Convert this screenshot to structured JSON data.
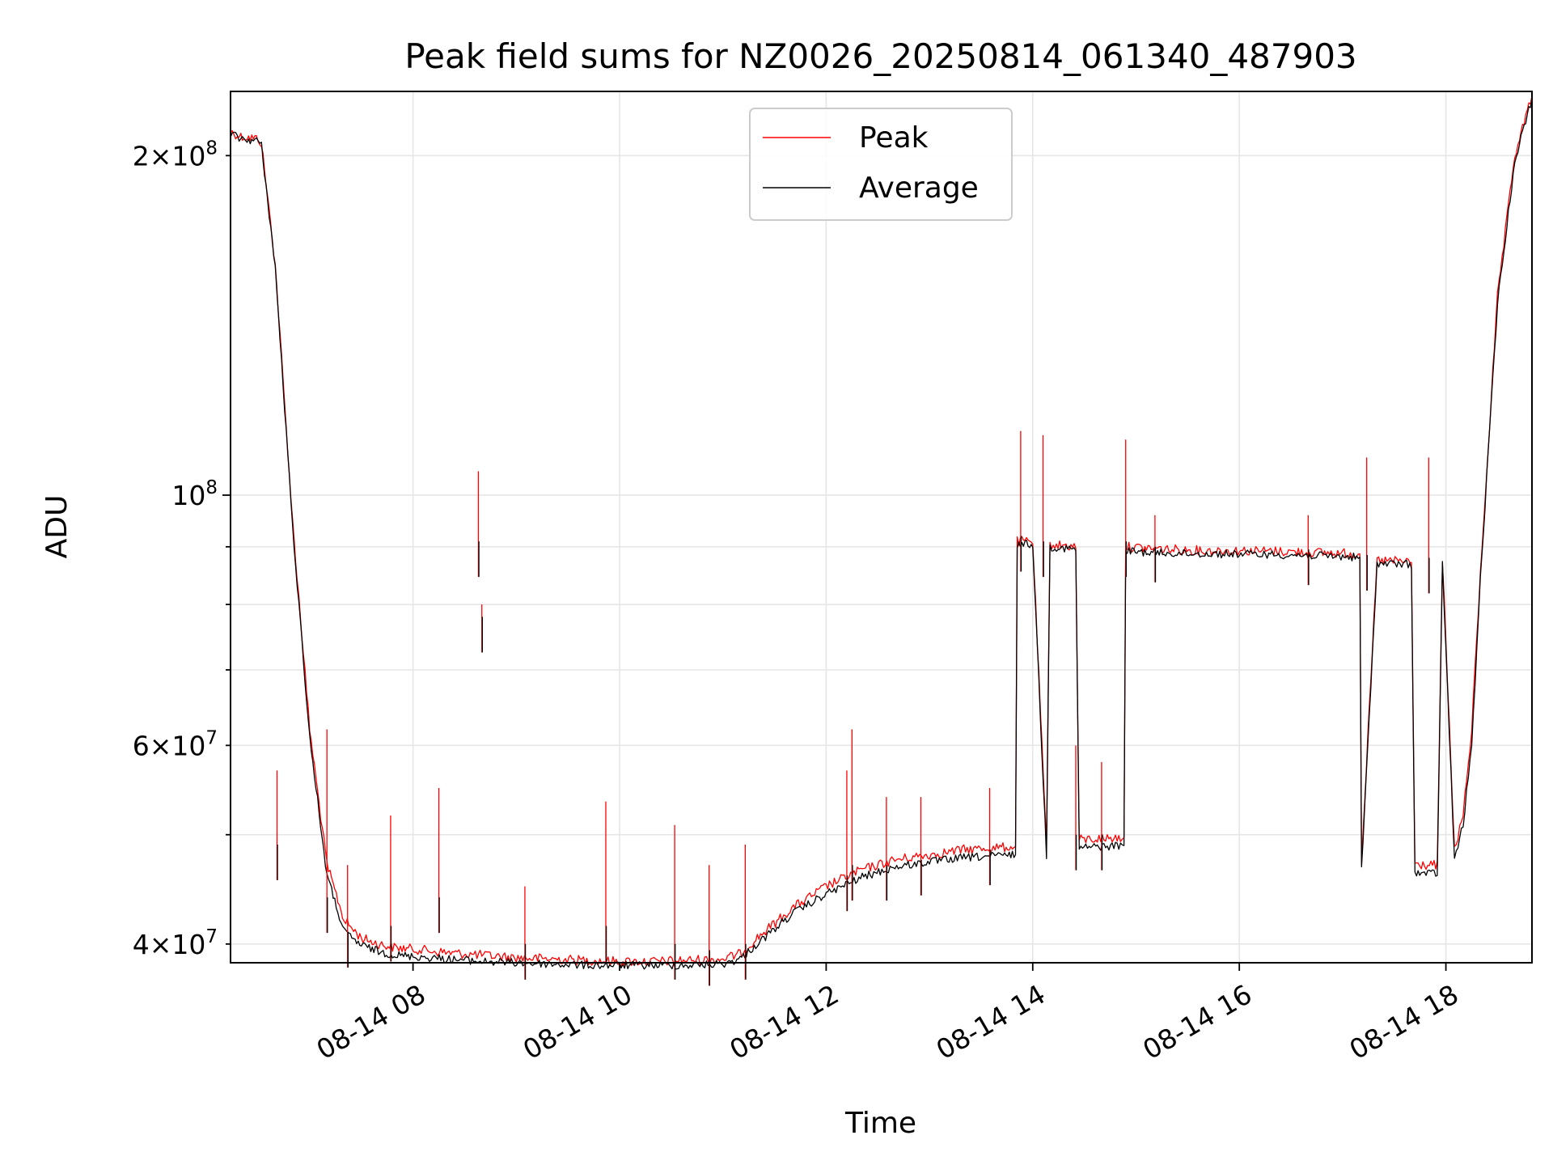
{
  "chart_data": {
    "type": "line",
    "title": "Peak field sums for NZ0026_20250814_061340_487903",
    "xlabel": "Time",
    "ylabel": "ADU",
    "yscale": "log",
    "xlim": [
      "2025-08-14 06:14",
      "2025-08-14 18:50"
    ],
    "ylim": [
      38500000,
      228000000
    ],
    "x_ticks": [
      "08-14 08",
      "08-14 10",
      "08-14 12",
      "08-14 14",
      "08-14 16",
      "08-14 18"
    ],
    "y_ticks_major": [
      {
        "value": 100000000,
        "base": "10",
        "exp": "8"
      }
    ],
    "y_ticks_minor_labeled": [
      {
        "value": 40000000,
        "mant": "4",
        "base": "10",
        "exp": "7"
      },
      {
        "value": 60000000,
        "mant": "6",
        "base": "10",
        "exp": "7"
      },
      {
        "value": 200000000,
        "mant": "2",
        "base": "10",
        "exp": "8"
      }
    ],
    "grid": true,
    "legend": {
      "placement": "upper center"
    },
    "series": [
      {
        "name": "Peak",
        "color": "#ff0000",
        "x": [
          "06:14",
          "06:20",
          "06:30",
          "06:32",
          "06:40",
          "06:50",
          "07:00",
          "07:10",
          "07:20",
          "07:30",
          "07:40",
          "07:50",
          "08:00",
          "08:20",
          "08:40",
          "09:00",
          "09:20",
          "09:40",
          "10:00",
          "10:20",
          "10:40",
          "11:00",
          "11:10",
          "11:20",
          "11:40",
          "12:00",
          "12:20",
          "12:40",
          "13:00",
          "13:20",
          "13:40",
          "13:50",
          "13:51",
          "14:00",
          "14:08",
          "14:10",
          "14:25",
          "14:27",
          "14:50",
          "14:53",
          "14:54",
          "15:20",
          "15:40",
          "16:00",
          "16:20",
          "16:40",
          "17:00",
          "17:10",
          "17:11",
          "17:20",
          "17:40",
          "17:42",
          "17:55",
          "17:58",
          "18:05",
          "18:10",
          "18:15",
          "18:20",
          "18:30",
          "18:40",
          "18:50"
        ],
        "values": [
          210000000,
          208000000,
          207000000,
          205000000,
          160000000,
          95000000,
          62000000,
          47000000,
          42000000,
          40500000,
          40000000,
          39700000,
          39600000,
          39300000,
          39100000,
          38900000,
          38800000,
          38700000,
          38600000,
          38600000,
          38700000,
          38800000,
          39200000,
          40500000,
          43000000,
          45000000,
          46500000,
          47500000,
          48000000,
          48500000,
          48700000,
          48800000,
          91000000,
          91000000,
          48800000,
          90500000,
          90000000,
          49500000,
          49700000,
          49700000,
          90000000,
          89500000,
          89300000,
          89300000,
          89200000,
          89000000,
          88800000,
          88700000,
          47500000,
          87500000,
          87300000,
          47000000,
          47000000,
          87500000,
          48500000,
          52000000,
          62000000,
          85000000,
          150000000,
          200000000,
          226000000
        ]
      },
      {
        "name": "Average",
        "color": "#000000",
        "x": [
          "06:14",
          "06:20",
          "06:30",
          "06:32",
          "06:40",
          "06:50",
          "07:00",
          "07:10",
          "07:20",
          "07:30",
          "07:40",
          "07:50",
          "08:00",
          "08:20",
          "08:40",
          "09:00",
          "09:20",
          "09:40",
          "10:00",
          "10:20",
          "10:40",
          "11:00",
          "11:10",
          "11:20",
          "11:40",
          "12:00",
          "12:20",
          "12:40",
          "13:00",
          "13:20",
          "13:40",
          "13:50",
          "13:51",
          "14:00",
          "14:08",
          "14:10",
          "14:25",
          "14:27",
          "14:50",
          "14:53",
          "14:54",
          "15:20",
          "15:40",
          "16:00",
          "16:20",
          "16:40",
          "17:00",
          "17:10",
          "17:11",
          "17:20",
          "17:40",
          "17:42",
          "17:55",
          "17:58",
          "18:05",
          "18:10",
          "18:15",
          "18:20",
          "18:30",
          "18:40",
          "18:50"
        ],
        "values": [
          209000000,
          207000000,
          206000000,
          204000000,
          159000000,
          94000000,
          61000000,
          46000000,
          41000000,
          39900000,
          39400000,
          39100000,
          39000000,
          38800000,
          38600000,
          38500000,
          38400000,
          38300000,
          38300000,
          38300000,
          38300000,
          38400000,
          38800000,
          40000000,
          42500000,
          44300000,
          45800000,
          46800000,
          47300000,
          47700000,
          47900000,
          48000000,
          90500000,
          90500000,
          48000000,
          90000000,
          89500000,
          48700000,
          48900000,
          48900000,
          89200000,
          88800000,
          88700000,
          88700000,
          88600000,
          88400000,
          88200000,
          88100000,
          46500000,
          87000000,
          86800000,
          46200000,
          46200000,
          86800000,
          47500000,
          51000000,
          60000000,
          84000000,
          148000000,
          198000000,
          225000000
        ]
      }
    ],
    "spikes": [
      {
        "x": "06:41",
        "peak": 57000000,
        "avg": 49000000
      },
      {
        "x": "07:10",
        "peak": 62000000,
        "avg": 44000000
      },
      {
        "x": "07:22",
        "peak": 47000000,
        "avg": 41000000
      },
      {
        "x": "07:47",
        "peak": 52000000,
        "avg": 41500000
      },
      {
        "x": "08:15",
        "peak": 55000000,
        "avg": 44000000
      },
      {
        "x": "08:38",
        "peak": 105000000,
        "avg": 91000000
      },
      {
        "x": "08:40",
        "peak": 80000000,
        "avg": 78000000
      },
      {
        "x": "09:05",
        "peak": 45000000,
        "avg": 40000000
      },
      {
        "x": "09:52",
        "peak": 53500000,
        "avg": 41500000
      },
      {
        "x": "10:32",
        "peak": 51000000,
        "avg": 40000000
      },
      {
        "x": "10:52",
        "peak": 47000000,
        "avg": 39500000
      },
      {
        "x": "11:13",
        "peak": 49000000,
        "avg": 40000000
      },
      {
        "x": "12:12",
        "peak": 57000000,
        "avg": 46000000
      },
      {
        "x": "12:15",
        "peak": 62000000,
        "avg": 47000000
      },
      {
        "x": "12:35",
        "peak": 54000000,
        "avg": 47000000
      },
      {
        "x": "12:55",
        "peak": 54000000,
        "avg": 47500000
      },
      {
        "x": "13:35",
        "peak": 55000000,
        "avg": 48500000
      },
      {
        "x": "13:53",
        "peak": 114000000,
        "avg": 92000000
      },
      {
        "x": "14:06",
        "peak": 113000000,
        "avg": 91000000
      },
      {
        "x": "14:25",
        "peak": 60000000,
        "avg": 50000000
      },
      {
        "x": "14:40",
        "peak": 58000000,
        "avg": 50000000
      },
      {
        "x": "14:54",
        "peak": 112000000,
        "avg": 91000000
      },
      {
        "x": "15:11",
        "peak": 96000000,
        "avg": 90000000
      },
      {
        "x": "16:40",
        "peak": 96000000,
        "avg": 89500000
      },
      {
        "x": "17:14",
        "peak": 108000000,
        "avg": 88500000
      },
      {
        "x": "17:50",
        "peak": 108000000,
        "avg": 88000000
      }
    ]
  }
}
